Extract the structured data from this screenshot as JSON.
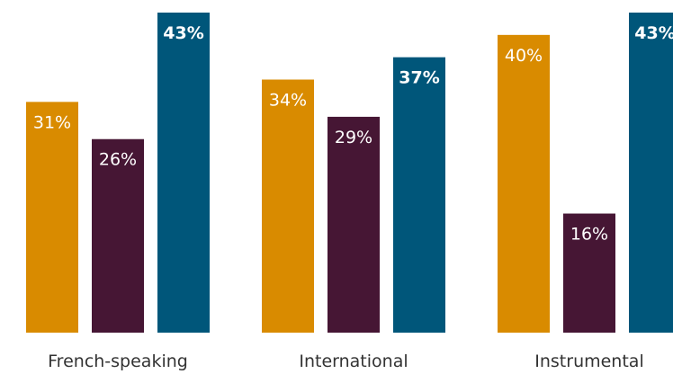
{
  "chart_data": {
    "type": "bar",
    "categories": [
      "French-speaking",
      "International",
      "Instrumental"
    ],
    "series": [
      {
        "color": "#D98B00",
        "values": [
          31,
          34,
          40
        ],
        "labels": [
          "31%",
          "34%",
          "40%"
        ],
        "bold": [
          false,
          false,
          false
        ]
      },
      {
        "color": "#461634",
        "values": [
          26,
          29,
          16
        ],
        "labels": [
          "26%",
          "29%",
          "16%"
        ],
        "bold": [
          false,
          false,
          false
        ]
      },
      {
        "color": "#00567A",
        "values": [
          43,
          37,
          43
        ],
        "labels": [
          "43%",
          "37%",
          "43%"
        ],
        "bold": [
          true,
          true,
          true
        ]
      }
    ],
    "ylim": [
      0,
      43
    ],
    "grid": false,
    "legend": "none"
  }
}
